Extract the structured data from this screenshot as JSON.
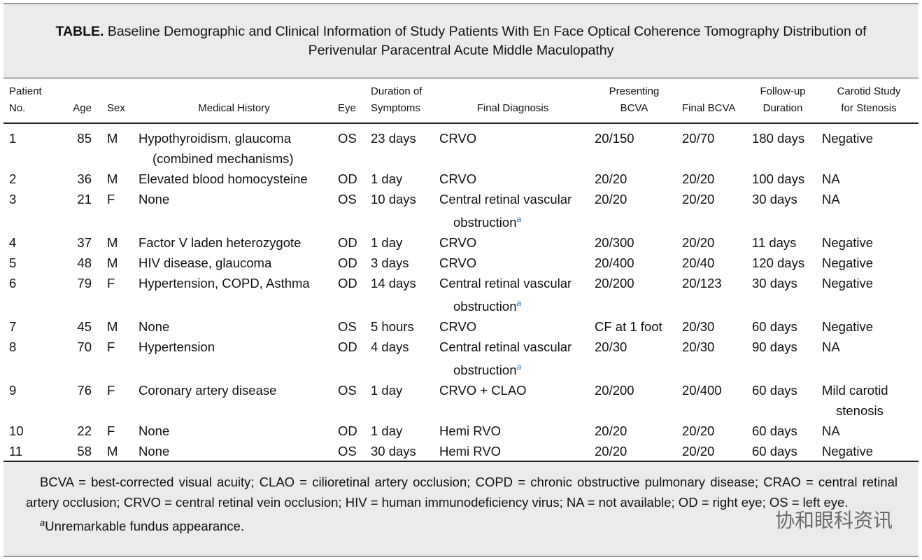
{
  "title": {
    "label": "TABLE.",
    "text": "Baseline Demographic and Clinical Information of Study Patients With En Face Optical Coherence Tomography Distribution of Perivenular Paracentral Acute Middle Maculopathy"
  },
  "table": {
    "header": [
      [
        "Patient",
        "No."
      ],
      [
        "Age"
      ],
      [
        "Sex"
      ],
      [
        "Medical History"
      ],
      [
        "Eye"
      ],
      [
        "Duration of",
        "Symptoms"
      ],
      [
        "Final Diagnosis"
      ],
      [
        "Presenting",
        "BCVA"
      ],
      [
        "Final BCVA"
      ],
      [
        "Follow-up",
        "Duration"
      ],
      [
        "Carotid Study",
        "for Stenosis"
      ]
    ],
    "rows": [
      [
        "1",
        "85",
        "M",
        "Hypothyroidism, glaucoma (combined mechanisms)",
        "OS",
        "23 days",
        {
          "text": "CRVO"
        },
        "20/150",
        "20/70",
        "180 days",
        "Negative"
      ],
      [
        "2",
        "36",
        "M",
        "Elevated blood homocysteine",
        "OD",
        "1 day",
        {
          "text": "CRVO"
        },
        "20/20",
        "20/20",
        "100 days",
        "NA"
      ],
      [
        "3",
        "21",
        "F",
        "None",
        "OS",
        "10 days",
        {
          "text": "Central retinal vascular obstruction",
          "sup": "a"
        },
        "20/20",
        "20/20",
        "30 days",
        "NA"
      ],
      [
        "4",
        "37",
        "M",
        "Factor V laden heterozygote",
        "OD",
        "1 day",
        {
          "text": "CRVO"
        },
        "20/300",
        "20/20",
        "11 days",
        "Negative"
      ],
      [
        "5",
        "48",
        "M",
        "HIV disease, glaucoma",
        "OD",
        "3 days",
        {
          "text": "CRVO"
        },
        "20/400",
        "20/40",
        "120 days",
        "Negative"
      ],
      [
        "6",
        "79",
        "F",
        "Hypertension, COPD, Asthma",
        "OD",
        "14 days",
        {
          "text": "Central retinal vascular obstruction",
          "sup": "a"
        },
        "20/200",
        "20/123",
        "30 days",
        "Negative"
      ],
      [
        "7",
        "45",
        "M",
        "None",
        "OS",
        "5 hours",
        {
          "text": "CRVO"
        },
        "CF at 1 foot",
        "20/30",
        "60 days",
        "Negative"
      ],
      [
        "8",
        "70",
        "F",
        "Hypertension",
        "OD",
        "4 days",
        {
          "text": "Central retinal vascular obstruction",
          "sup": "a"
        },
        "20/30",
        "20/30",
        "90 days",
        "NA"
      ],
      [
        "9",
        "76",
        "F",
        "Coronary artery disease",
        "OS",
        "1 day",
        {
          "text": "CRVO + CLAO"
        },
        "20/200",
        "20/400",
        "60 days",
        "Mild carotid stenosis"
      ],
      [
        "10",
        "22",
        "F",
        "None",
        "OD",
        "1 day",
        {
          "text": "Hemi RVO"
        },
        "20/20",
        "20/20",
        "60 days",
        "NA"
      ],
      [
        "11",
        "58",
        "M",
        "None",
        "OS",
        "30 days",
        {
          "text": "Hemi RVO"
        },
        "20/20",
        "20/20",
        "60 days",
        "Negative"
      ]
    ]
  },
  "footer": {
    "abbreviations": "BCVA = best-corrected visual acuity; CLAO = cilioretinal artery occlusion; COPD = chronic obstructive pulmonary disease; CRAO = central retinal artery occlusion; CRVO = central retinal vein occlusion; HIV = human immunodeficiency virus; NA = not available; OD = right eye; OS = left eye.",
    "note_marker": "a",
    "note": "Unremarkable fundus appearance."
  },
  "watermark": "协和眼科资讯"
}
